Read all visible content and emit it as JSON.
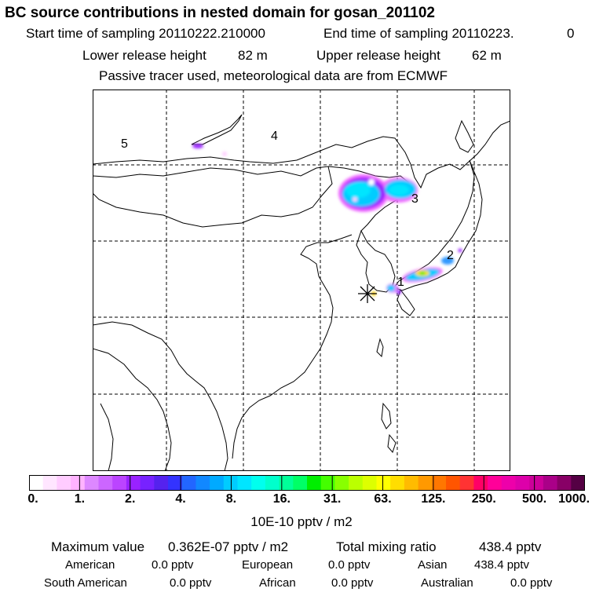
{
  "title": "BC  source contributions in nested domain for gosan_201102",
  "header": {
    "start_label": "Start time of sampling 20110222.210000",
    "end_label": "End time of sampling 20110223.",
    "end_suffix": "0",
    "lower_label": "Lower release height",
    "lower_value": "82 m",
    "upper_label": "Upper release height",
    "upper_value": "62 m",
    "note": "Passive tracer used, meteorological data are from ECMWF"
  },
  "map": {
    "region_labels": [
      "5",
      "4",
      "3",
      "2",
      "1"
    ],
    "receptor": "gosan"
  },
  "colorbar": {
    "colors": [
      "#ffffff",
      "#ffe6ff",
      "#ffccff",
      "#ffb3ff",
      "#dd88ff",
      "#cc66ff",
      "#bb44ff",
      "#9922ff",
      "#7722ff",
      "#5522ee",
      "#3333ff",
      "#2266ff",
      "#1188ff",
      "#00aaff",
      "#00ccff",
      "#00e5ff",
      "#00ffee",
      "#00ffcc",
      "#00ff99",
      "#00ff66",
      "#00ee00",
      "#44ff00",
      "#88ff00",
      "#bbff00",
      "#ddff00",
      "#ffff00",
      "#ffdd00",
      "#ffbb00",
      "#ff9900",
      "#ff7700",
      "#ff5500",
      "#ff3333",
      "#ff0066",
      "#ff0099",
      "#ee00aa",
      "#dd00aa",
      "#cc0099",
      "#aa0088",
      "#880066",
      "#550044"
    ],
    "ticks": [
      "0.",
      "1.",
      "2.",
      "4.",
      "8.",
      "16.",
      "31.",
      "63.",
      "125.",
      "250.",
      "500.",
      "1000."
    ],
    "units": "10E-10 pptv / m2"
  },
  "summary": {
    "max_label": "Maximum value",
    "max_value": "0.362E-07 pptv / m2",
    "total_label": "Total mixing ratio",
    "total_value": "438.4 pptv",
    "sources": [
      {
        "name": "American",
        "value": "0.0 pptv"
      },
      {
        "name": "European",
        "value": "0.0 pptv"
      },
      {
        "name": "Asian",
        "value": "438.4 pptv"
      },
      {
        "name": "South American",
        "value": "0.0 pptv"
      },
      {
        "name": "African",
        "value": "0.0 pptv"
      },
      {
        "name": "Australian",
        "value": "0.0 pptv"
      }
    ]
  }
}
